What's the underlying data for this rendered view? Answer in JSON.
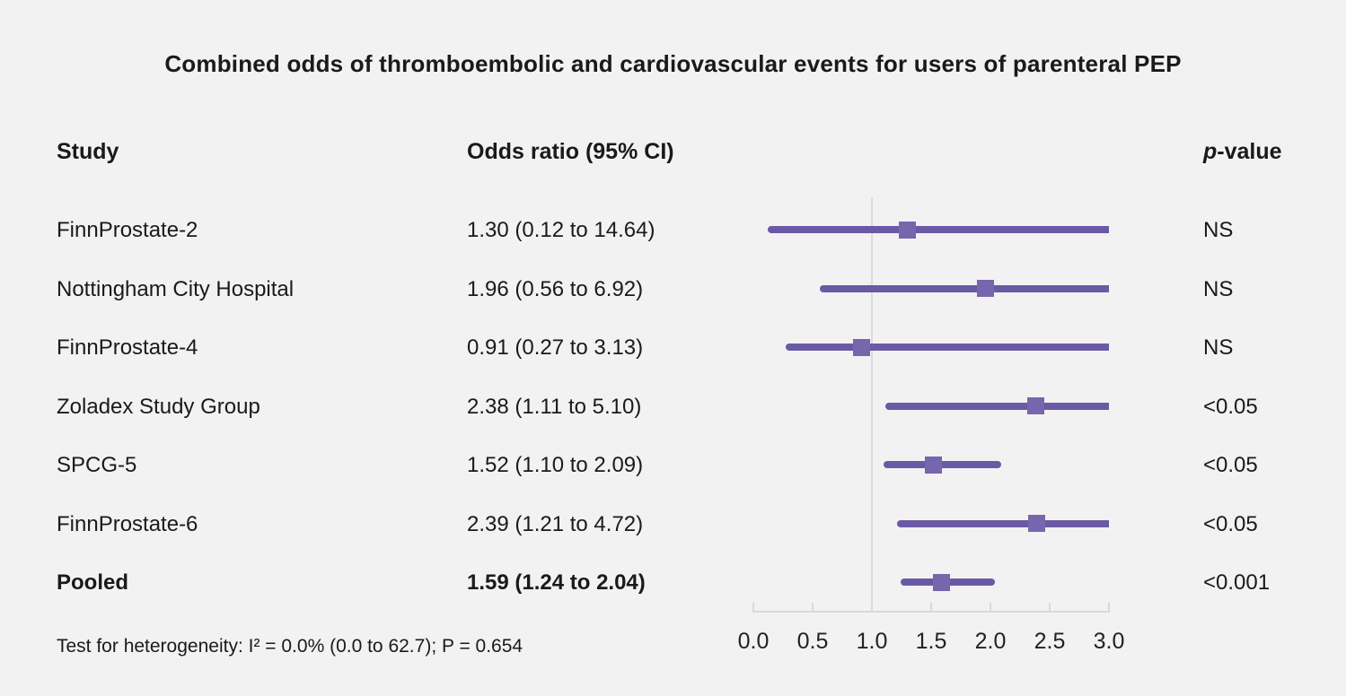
{
  "chart_data": {
    "type": "forest",
    "title": "Combined odds of thromboembolic and cardiovascular events for users of parenteral PEP",
    "columns": {
      "study": "Study",
      "odds_ratio": "Odds ratio (95% CI)",
      "p_italic": "p",
      "p_rest": "-value"
    },
    "rows": [
      {
        "study": "FinnProstate-2",
        "or_text": "1.30 (0.12 to 14.64)",
        "or": 1.3,
        "ci_low": 0.12,
        "ci_high": 14.64,
        "p_value": "NS",
        "bold": false
      },
      {
        "study": "Nottingham City Hospital",
        "or_text": "1.96 (0.56 to 6.92)",
        "or": 1.96,
        "ci_low": 0.56,
        "ci_high": 6.92,
        "p_value": "NS",
        "bold": false
      },
      {
        "study": "FinnProstate-4",
        "or_text": "0.91 (0.27 to 3.13)",
        "or": 0.91,
        "ci_low": 0.27,
        "ci_high": 3.13,
        "p_value": "NS",
        "bold": false
      },
      {
        "study": "Zoladex Study Group",
        "or_text": "2.38 (1.11 to 5.10)",
        "or": 2.38,
        "ci_low": 1.11,
        "ci_high": 5.1,
        "p_value": "<0.05",
        "bold": false
      },
      {
        "study": "SPCG-5",
        "or_text": "1.52 (1.10 to 2.09)",
        "or": 1.52,
        "ci_low": 1.1,
        "ci_high": 2.09,
        "p_value": "<0.05",
        "bold": false
      },
      {
        "study": "FinnProstate-6",
        "or_text": "2.39 (1.21 to 4.72)",
        "or": 2.39,
        "ci_low": 1.21,
        "ci_high": 4.72,
        "p_value": "<0.05",
        "bold": false
      },
      {
        "study": "Pooled",
        "or_text": "1.59 (1.24 to 2.04)",
        "or": 1.59,
        "ci_low": 1.24,
        "ci_high": 2.04,
        "p_value": "<0.001",
        "bold": true
      }
    ],
    "axis": {
      "min": 0.0,
      "max": 3.0,
      "tick_values": [
        0.0,
        0.5,
        1.0,
        1.5,
        2.0,
        2.5,
        3.0
      ],
      "tick_labels": [
        "0.0",
        "0.5",
        "1.0",
        "1.5",
        "2.0",
        "2.5",
        "3.0"
      ],
      "reference_value": 1.0
    },
    "footnote": "Test for heterogeneity: I² = 0.0% (0.0 to 62.7); P = 0.654"
  },
  "colors": {
    "background": "#f2f2f2",
    "text": "#1a1a1a",
    "ci_line": "#6a5aa5",
    "marker": "#7666ad",
    "reference_line": "#d8dce0",
    "axis_line": "#d6dade"
  }
}
